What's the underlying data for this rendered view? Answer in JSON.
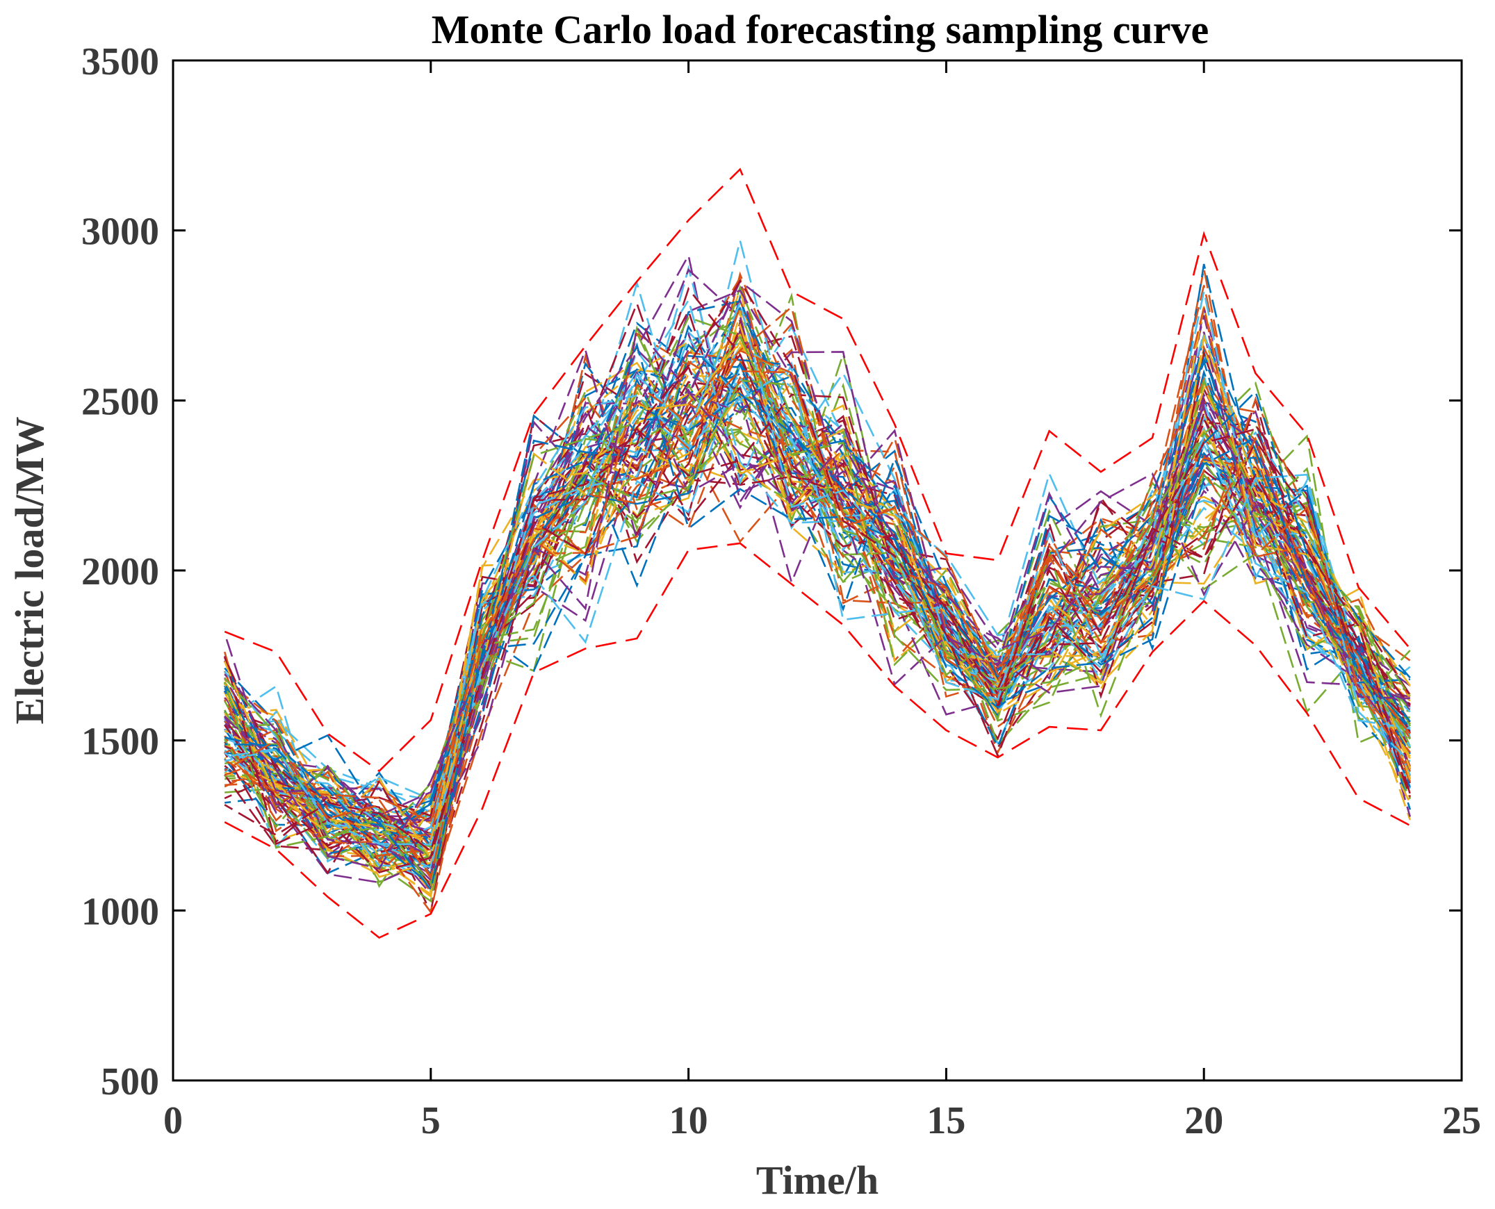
{
  "chart_data": {
    "type": "line",
    "title": "Monte Carlo load forecasting sampling curve",
    "xlabel": "Time/h",
    "ylabel": "Electric load/MW",
    "xlim": [
      0,
      25
    ],
    "ylim": [
      500,
      3500
    ],
    "xticks": [
      0,
      5,
      10,
      15,
      20,
      25
    ],
    "yticks": [
      500,
      1000,
      1500,
      2000,
      2500,
      3000,
      3500
    ],
    "grid": false,
    "line_style": "dashed",
    "sample_count": 100,
    "x": [
      1,
      2,
      3,
      4,
      5,
      6,
      7,
      8,
      9,
      10,
      11,
      12,
      13,
      14,
      15,
      16,
      17,
      18,
      19,
      20,
      21,
      22,
      23,
      24
    ],
    "mean": [
      1560,
      1410,
      1290,
      1230,
      1200,
      1780,
      2120,
      2260,
      2380,
      2480,
      2560,
      2410,
      2210,
      2060,
      1820,
      1640,
      1900,
      1890,
      2060,
      2400,
      2240,
      2030,
      1720,
      1520
    ],
    "upper_envelope": [
      1820,
      1760,
      1520,
      1410,
      1560,
      2030,
      2460,
      2660,
      2850,
      3030,
      3180,
      2820,
      2740,
      2430,
      2050,
      2030,
      2410,
      2290,
      2390,
      2990,
      2580,
      2400,
      1950,
      1770
    ],
    "lower_envelope": [
      1260,
      1180,
      1040,
      920,
      990,
      1300,
      1700,
      1770,
      1800,
      2060,
      2080,
      1960,
      1840,
      1660,
      1530,
      1450,
      1540,
      1530,
      1760,
      1910,
      1780,
      1580,
      1330,
      1250
    ],
    "series_colors": [
      "#0072BD",
      "#D95319",
      "#EDB120",
      "#7E2F8E",
      "#77AC30",
      "#4DBEEE",
      "#A2142F"
    ],
    "envelope_color": "#FF0000"
  }
}
